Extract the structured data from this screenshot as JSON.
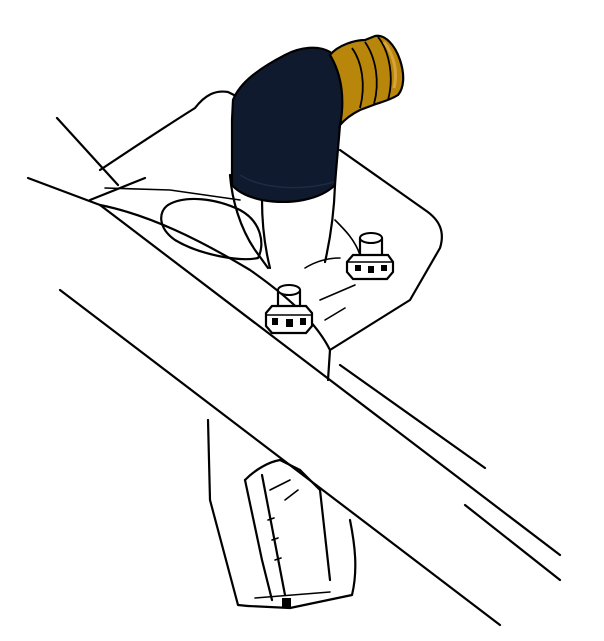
{
  "diagram": {
    "colors": {
      "background": "#ffffff",
      "line": "#000000",
      "sensor_body": "#0f1a2e",
      "connector_boot": "#b8860b",
      "connector_boot_highlight": "#d9a23a"
    },
    "parts": [
      {
        "id": "sensor-elbow",
        "icon": "sensor-elbow-icon"
      },
      {
        "id": "connector-boot",
        "icon": "rubber-boot-icon"
      },
      {
        "id": "mounting-bolt-left",
        "icon": "bolt-icon"
      },
      {
        "id": "mounting-bolt-right",
        "icon": "bolt-icon"
      },
      {
        "id": "mounting-bracket",
        "icon": "bracket-icon"
      },
      {
        "id": "frame-rail",
        "icon": "frame-rail-icon"
      },
      {
        "id": "lower-bracket",
        "icon": "bracket-icon"
      }
    ]
  }
}
